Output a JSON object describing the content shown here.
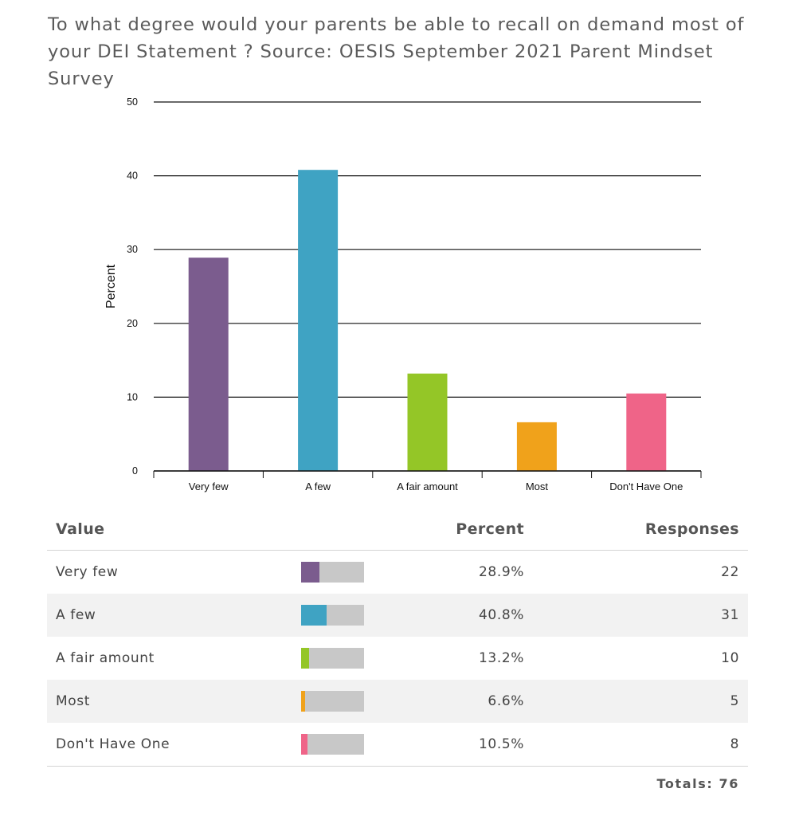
{
  "title": "To what degree would your parents be able to recall on demand most of your DEI Statement ? Source: OESIS September 2021 Parent Mindset Survey",
  "chart_data": {
    "type": "bar",
    "categories": [
      "Very few",
      "A few",
      "A fair amount",
      "Most",
      "Don't Have One"
    ],
    "values": [
      28.9,
      40.8,
      13.2,
      6.6,
      10.5
    ],
    "colors": [
      "#7b5c8e",
      "#3fa3c3",
      "#94c627",
      "#f0a21b",
      "#ef6488"
    ],
    "ylabel": "Percent",
    "xlabel": "",
    "ylim": [
      0,
      50
    ],
    "yticks": [
      0,
      10,
      20,
      30,
      40,
      50
    ],
    "grid": true
  },
  "table": {
    "headers": {
      "value": "Value",
      "percent": "Percent",
      "responses": "Responses"
    },
    "rows": [
      {
        "value": "Very few",
        "percent": "28.9%",
        "responses": "22",
        "fraction": 0.289,
        "color": "#7b5c8e"
      },
      {
        "value": "A few",
        "percent": "40.8%",
        "responses": "31",
        "fraction": 0.408,
        "color": "#3fa3c3"
      },
      {
        "value": "A fair amount",
        "percent": "13.2%",
        "responses": "10",
        "fraction": 0.132,
        "color": "#94c627"
      },
      {
        "value": "Most",
        "percent": "6.6%",
        "responses": "5",
        "fraction": 0.066,
        "color": "#f0a21b"
      },
      {
        "value": "Don't Have One",
        "percent": "10.5%",
        "responses": "8",
        "fraction": 0.105,
        "color": "#ef6488"
      }
    ],
    "totals": "Totals: 76"
  }
}
